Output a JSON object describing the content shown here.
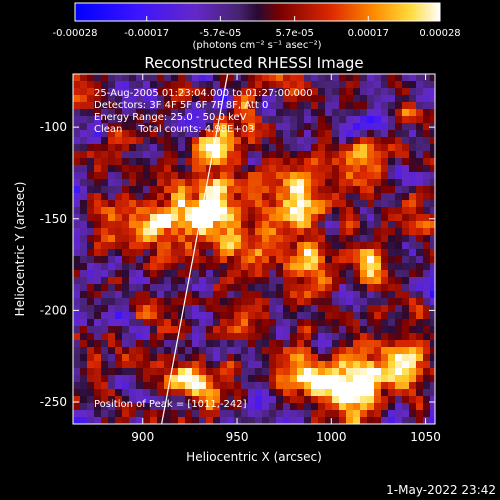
{
  "chart_data": {
    "type": "heatmap",
    "title": "Reconstructed RHESSI Image",
    "xlabel": "Heliocentric X (arcsec)",
    "ylabel": "Heliocentric Y (arcsec)",
    "xlim": [
      863,
      1055
    ],
    "ylim": [
      -262,
      -71
    ],
    "x_ticks": [
      900,
      950,
      1000,
      1050
    ],
    "y_ticks": [
      -100,
      -150,
      -200,
      -250
    ],
    "colorbar": {
      "min": -0.00028,
      "max": 0.00028,
      "tick_labels": [
        "-0.00028",
        "-0.00017",
        "-5.7e-05",
        "5.7e-05",
        "0.00017",
        "0.00028"
      ],
      "label": "(photons cm⁻² s⁻¹ asec⁻²)"
    },
    "info_lines": [
      "25-Aug-2005 01:23:04.000 to 01:27:00.000",
      "Detectors: 3F 4F 5F 6F 7F 8F, Att 0",
      "Energy Range: 25.0 - 50.0 keV",
      "Clean     Total counts: 4.98E+03"
    ],
    "peak_label": "Position of Peak = [1011,-242]",
    "limb_line": [
      [
        910,
        -262
      ],
      [
        945,
        -71
      ]
    ],
    "sources": [
      {
        "x": 932,
        "y": -145,
        "sigma": 14,
        "amp": 1.0
      },
      {
        "x": 940,
        "y": -110,
        "sigma": 8,
        "amp": 0.75
      },
      {
        "x": 905,
        "y": -152,
        "sigma": 9,
        "amp": 0.6
      },
      {
        "x": 882,
        "y": -150,
        "sigma": 8,
        "amp": 0.55
      },
      {
        "x": 887,
        "y": -108,
        "sigma": 6,
        "amp": 0.45
      },
      {
        "x": 985,
        "y": -140,
        "sigma": 12,
        "amp": 0.85
      },
      {
        "x": 990,
        "y": -176,
        "sigma": 9,
        "amp": 0.65
      },
      {
        "x": 960,
        "y": -165,
        "sigma": 10,
        "amp": 0.7
      },
      {
        "x": 1010,
        "y": -242,
        "sigma": 12,
        "amp": 1.0
      },
      {
        "x": 1035,
        "y": -228,
        "sigma": 11,
        "amp": 0.75
      },
      {
        "x": 980,
        "y": -232,
        "sigma": 10,
        "amp": 0.65
      },
      {
        "x": 925,
        "y": -240,
        "sigma": 10,
        "amp": 0.75
      },
      {
        "x": 905,
        "y": -200,
        "sigma": 6,
        "amp": 0.55
      },
      {
        "x": 1022,
        "y": -175,
        "sigma": 8,
        "amp": 0.55
      },
      {
        "x": 1015,
        "y": -120,
        "sigma": 7,
        "amp": 0.45
      },
      {
        "x": 1045,
        "y": -145,
        "sigma": 6,
        "amp": 0.45
      },
      {
        "x": 955,
        "y": -210,
        "sigma": 7,
        "amp": 0.5
      },
      {
        "x": 875,
        "y": -225,
        "sigma": 6,
        "amp": 0.45
      },
      {
        "x": 1040,
        "y": -95,
        "sigma": 6,
        "amp": 0.45
      },
      {
        "x": 955,
        "y": -85,
        "sigma": 6,
        "amp": 0.45
      }
    ]
  },
  "footer": {
    "date": "1-May-2022 23:42"
  }
}
